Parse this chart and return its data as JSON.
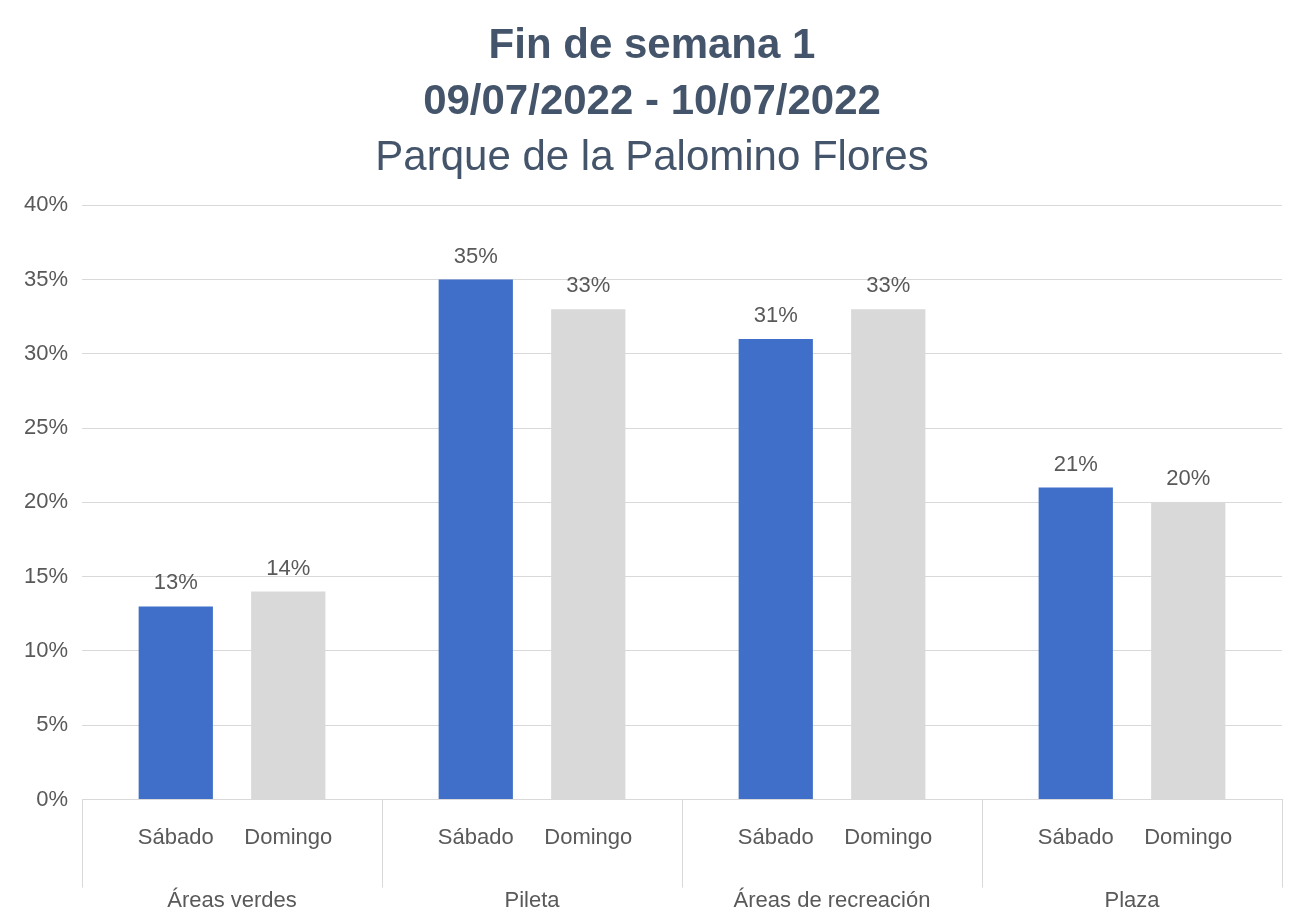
{
  "chart_data": {
    "type": "bar",
    "title": "Fin de semana 1\n09/07/2022  -  10/07/2022",
    "subtitle": "Parque de la Palomino Flores",
    "categories": [
      "Áreas verdes",
      "Pileta",
      "Áreas de recreación",
      "Plaza"
    ],
    "series": [
      {
        "name": "Sábado",
        "color": "#3f6fc9",
        "values": [
          13,
          35,
          31,
          21
        ],
        "value_labels": [
          "13%",
          "35%",
          "31%",
          "21%"
        ]
      },
      {
        "name": "Domingo",
        "color": "#d9d9d9",
        "values": [
          14,
          33,
          33,
          20
        ],
        "value_labels": [
          "14%",
          "33%",
          "33%",
          "20%"
        ]
      }
    ],
    "ylim": [
      0,
      40
    ],
    "yticks": [
      {
        "value": 0,
        "label": "0%"
      },
      {
        "value": 5,
        "label": "5%"
      },
      {
        "value": 10,
        "label": "10%"
      },
      {
        "value": 15,
        "label": "15%"
      },
      {
        "value": 20,
        "label": "20%"
      },
      {
        "value": 25,
        "label": "25%"
      },
      {
        "value": 30,
        "label": "30%"
      },
      {
        "value": 35,
        "label": "35%"
      },
      {
        "value": 40,
        "label": "40%"
      }
    ],
    "grid": "y",
    "legend": false
  }
}
